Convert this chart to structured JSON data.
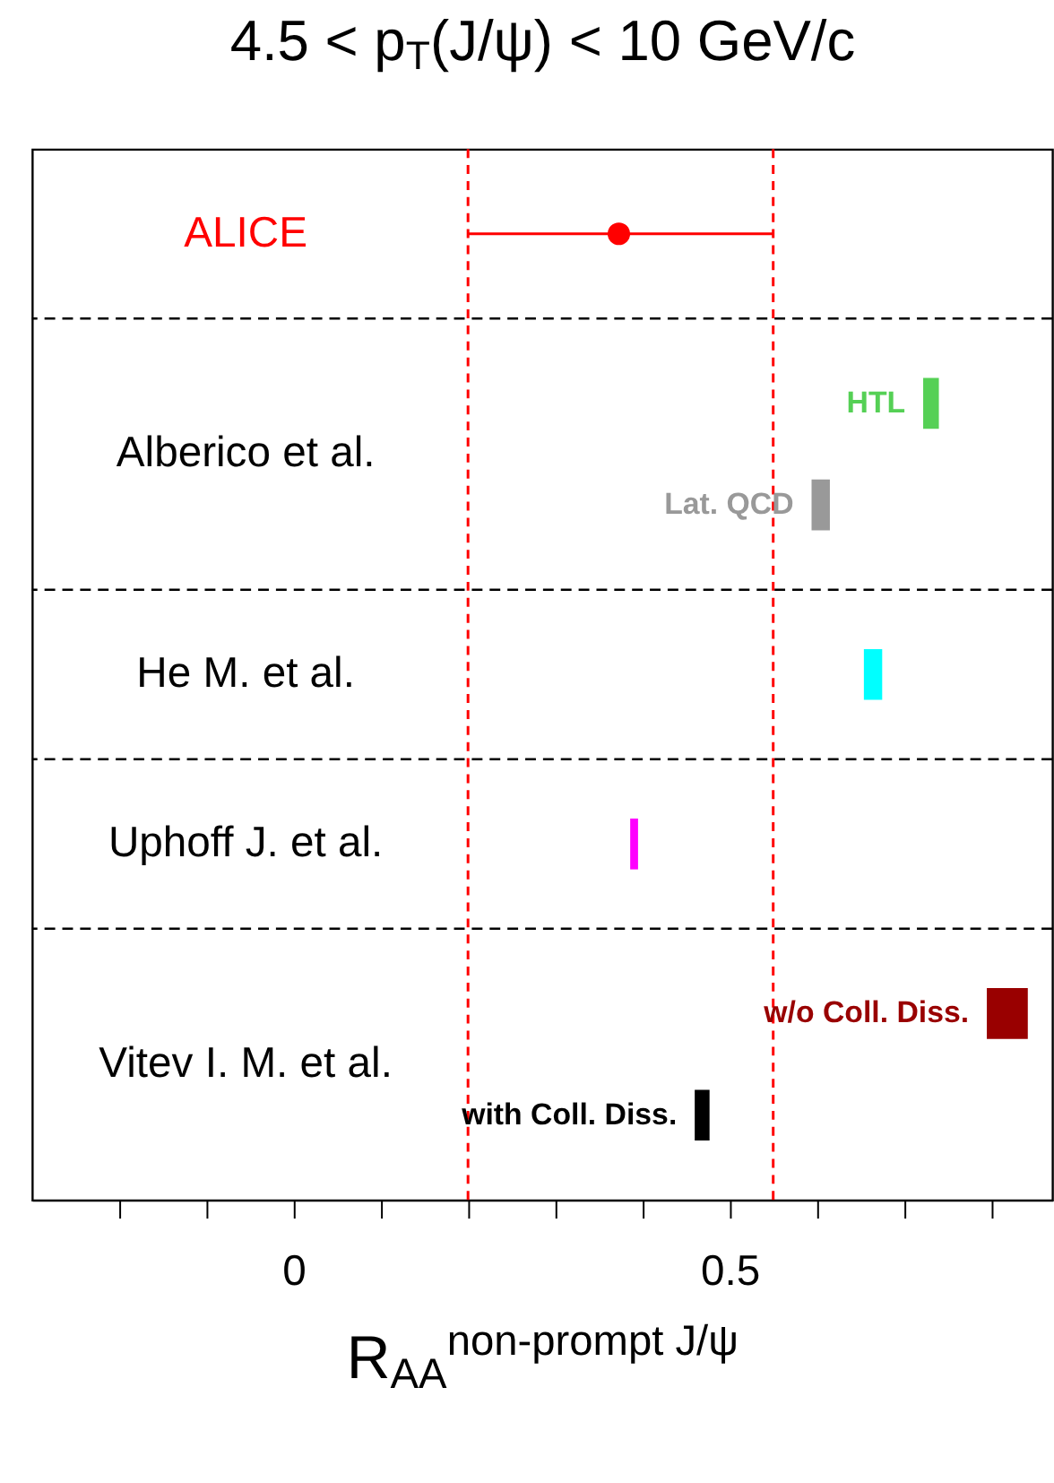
{
  "chart_data": {
    "type": "bar",
    "orientation": "horizontal",
    "title": "4.5 < p$_{T}$(J/ψ) < 10 GeV/c",
    "xlabel": "R$_{AA}$$^{non-prompt J/ψ}$",
    "categories": [
      null,
      "Alberico et al.",
      "He M. et al.",
      "Uphoff J. et al.",
      "Vitev I. M. et al."
    ],
    "series": [
      {
        "name": "ALICE",
        "type": "scatter",
        "color": "#ff0000",
        "values": [
          0.373,
          null,
          null,
          null,
          null
        ],
        "errors": [
          [
            0.2,
            0.55
          ],
          null,
          null,
          null,
          null
        ]
      },
      {
        "name": "HTL",
        "color": "#55d055",
        "base": [
          null,
          0.722,
          null,
          null,
          null
        ],
        "values": [
          null,
          0.018,
          null,
          null,
          null
        ]
      },
      {
        "name": "Lat. QCD",
        "color": "#999999",
        "base": [
          null,
          0.594,
          null,
          null,
          null
        ],
        "values": [
          null,
          0.021,
          null,
          null,
          null
        ]
      },
      {
        "color": "#00ffff",
        "base": [
          null,
          null,
          0.654,
          null,
          null
        ],
        "values": [
          null,
          null,
          0.021,
          null,
          null
        ]
      },
      {
        "color": "#ff00ff",
        "base": [
          null,
          null,
          null,
          0.386,
          null
        ],
        "values": [
          null,
          null,
          null,
          0.009,
          null
        ]
      },
      {
        "name": "w/o Coll. Diss.",
        "color": "#990000",
        "base": [
          null,
          null,
          null,
          null,
          0.795
        ],
        "values": [
          null,
          null,
          null,
          null,
          0.047
        ]
      },
      {
        "name": "with Coll. Diss.",
        "color": "#000000",
        "base": [
          null,
          null,
          null,
          null,
          0.46
        ],
        "values": [
          null,
          null,
          null,
          null,
          0.017
        ]
      }
    ],
    "xlim": [
      -0.3,
      0.87
    ],
    "xticks": [
      {
        "value": -0.2,
        "label": null
      },
      {
        "value": -0.1,
        "label": null
      },
      0,
      {
        "value": 0.1,
        "label": null
      },
      {
        "value": 0.2,
        "label": null
      },
      {
        "value": 0.3,
        "label": null
      },
      {
        "value": 0.4,
        "label": null
      },
      0.5,
      {
        "value": 0.6,
        "label": null
      },
      {
        "value": 0.7,
        "label": null
      },
      {
        "value": 0.8,
        "label": null
      }
    ],
    "ref_lines": [
      {
        "axis": "x",
        "value": 0.2,
        "color": "#ff0000",
        "line_style": "dashed"
      },
      {
        "axis": "x",
        "value": 0.55,
        "color": "#ff0000",
        "line_style": "dashed"
      }
    ],
    "marker": "circle",
    "grid": "y"
  }
}
